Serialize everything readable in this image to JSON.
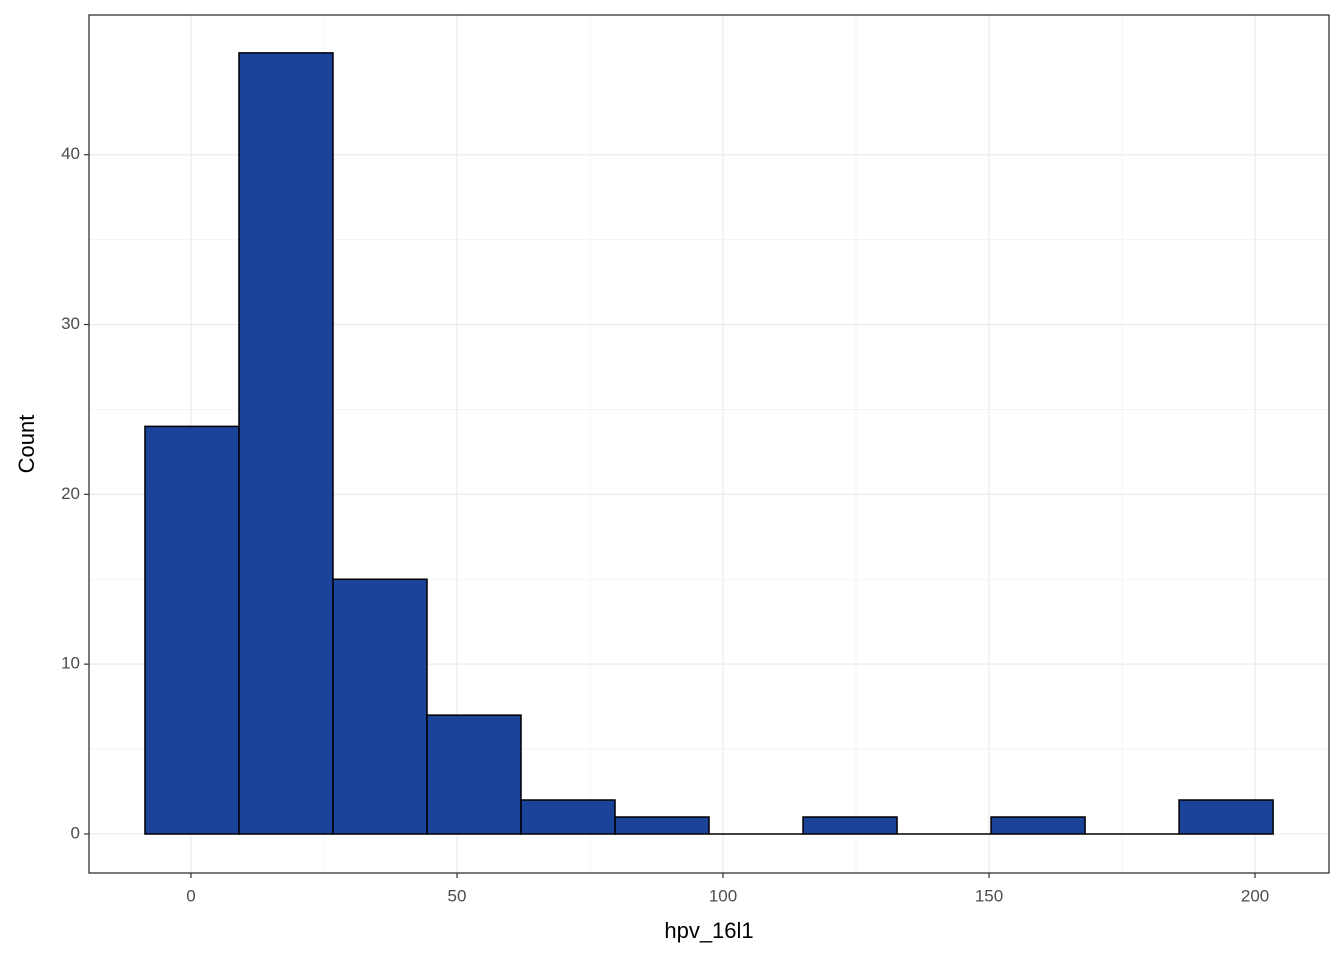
{
  "chart_data": {
    "type": "histogram",
    "x_label": "hpv_16l1",
    "y_label": "Count",
    "bins": [
      -8.65,
      9.02,
      26.69,
      44.36,
      62.03,
      79.7,
      97.37,
      115.04,
      132.71,
      150.38,
      168.05,
      185.72,
      203.39
    ],
    "values": [
      24,
      46,
      15,
      7,
      2,
      1,
      0,
      1,
      0,
      1,
      0,
      2
    ],
    "color": "#1a4399",
    "edge_color": "#000000",
    "xlim": [
      -19.17,
      213.9
    ],
    "xticks": [
      0,
      50,
      100,
      150,
      200
    ],
    "ylim": [
      -2.3,
      48.23
    ],
    "yticks": [
      0,
      10,
      20,
      30,
      40
    ],
    "grid": true
  }
}
